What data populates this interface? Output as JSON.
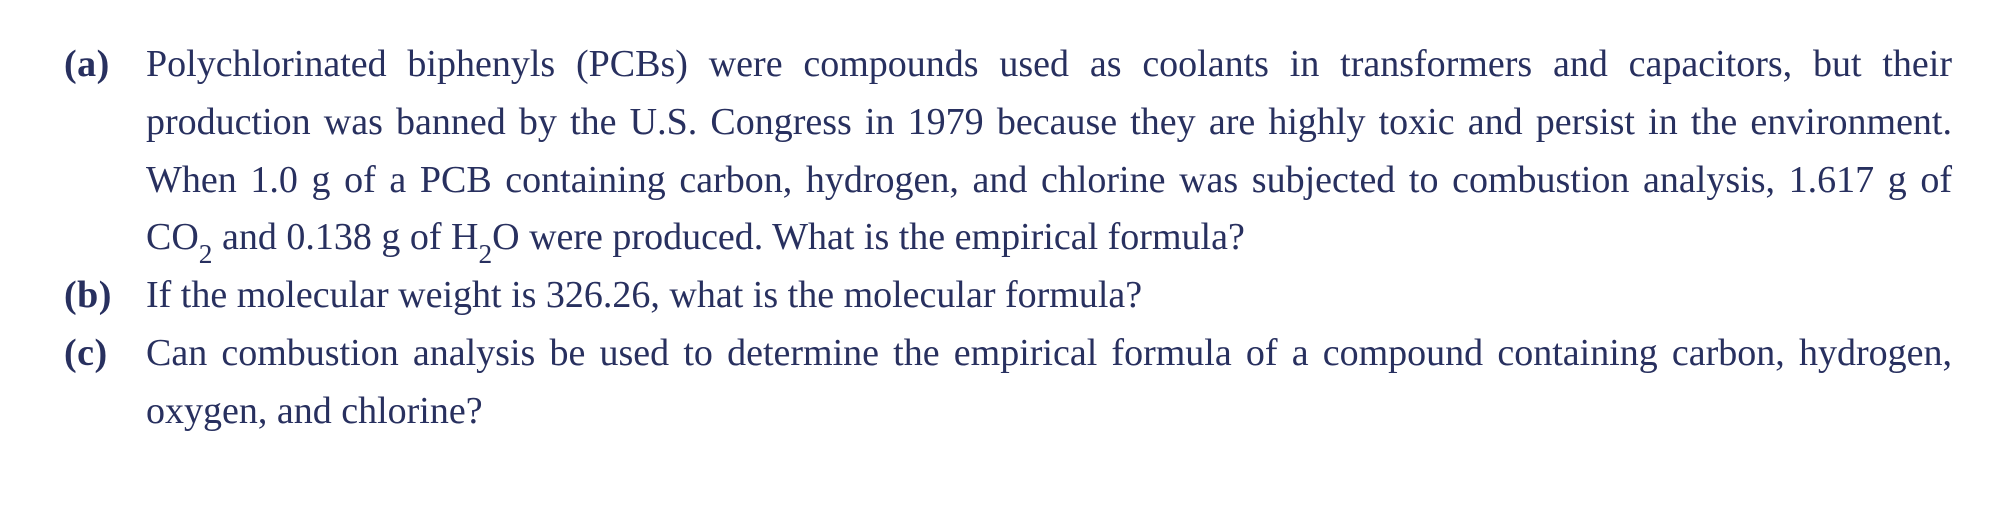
{
  "colors": {
    "text": "#28305f",
    "background": "#ffffff"
  },
  "typography": {
    "fontFamily": "Minion Pro / Palatino-style serif",
    "fontSizePx": 38,
    "lineHeight": 1.52,
    "labelWeight": "bold"
  },
  "items": [
    {
      "label": "(a)",
      "text": "Polychlorinated biphenyls (PCBs) were compounds used as coolants in transformers and capacitors, but their production was banned by the U.S. Congress in 1979 because they are highly toxic and persist in the environment. When 1.0 g of a PCB containing carbon, hydrogen, and chlorine was subjected to combustion analysis, 1.617 g of CO₂ and 0.138 g of H₂O were produced. What is the empirical formula?",
      "justify": true
    },
    {
      "label": "(b)",
      "text": "If the molecular weight is 326.26, what is the molecular formula?",
      "justify": false
    },
    {
      "label": "(c)",
      "text": "Can combustion analysis be used to determine the empirical formula of a compound containing carbon, hydrogen, oxygen, and chlorine?",
      "justify": true
    }
  ]
}
